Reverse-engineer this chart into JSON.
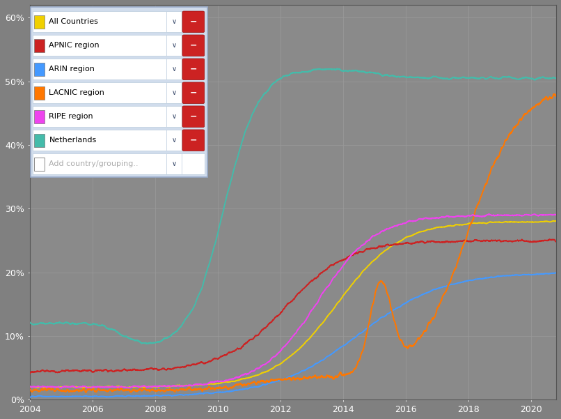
{
  "background_color": "#808080",
  "plot_bg_color": "#8a8a8a",
  "grid_color": "#999999",
  "ylim": [
    0,
    0.62
  ],
  "yticks": [
    0,
    0.1,
    0.2,
    0.3,
    0.4,
    0.5,
    0.6
  ],
  "ytick_labels": [
    "0%",
    "10%",
    "20%",
    "30%",
    "40%",
    "50%",
    "60%"
  ],
  "xlim_start": 2004.0,
  "xlim_end": 2020.8,
  "xticks": [
    2004,
    2006,
    2008,
    2010,
    2012,
    2014,
    2016,
    2018,
    2020
  ],
  "series": [
    {
      "name": "All Countries",
      "color": "#f0d000",
      "linewidth": 1.4
    },
    {
      "name": "APNIC region",
      "color": "#cc2222",
      "linewidth": 1.4
    },
    {
      "name": "ARIN region",
      "color": "#4499ff",
      "linewidth": 1.4
    },
    {
      "name": "LACNIC region",
      "color": "#ff7700",
      "linewidth": 1.4
    },
    {
      "name": "RIPE region",
      "color": "#ee44ee",
      "linewidth": 1.4
    },
    {
      "name": "Netherlands",
      "color": "#44bbaa",
      "linewidth": 1.4
    }
  ],
  "legend_colors": [
    "#f0d000",
    "#cc2222",
    "#4499ff",
    "#ff7700",
    "#ee44ee",
    "#44bbaa"
  ],
  "legend_labels": [
    "All Countries",
    "APNIC region",
    "ARIN region",
    "LACNIC region",
    "RIPE region",
    "Netherlands"
  ],
  "extra_label": "Add country/grouping.."
}
